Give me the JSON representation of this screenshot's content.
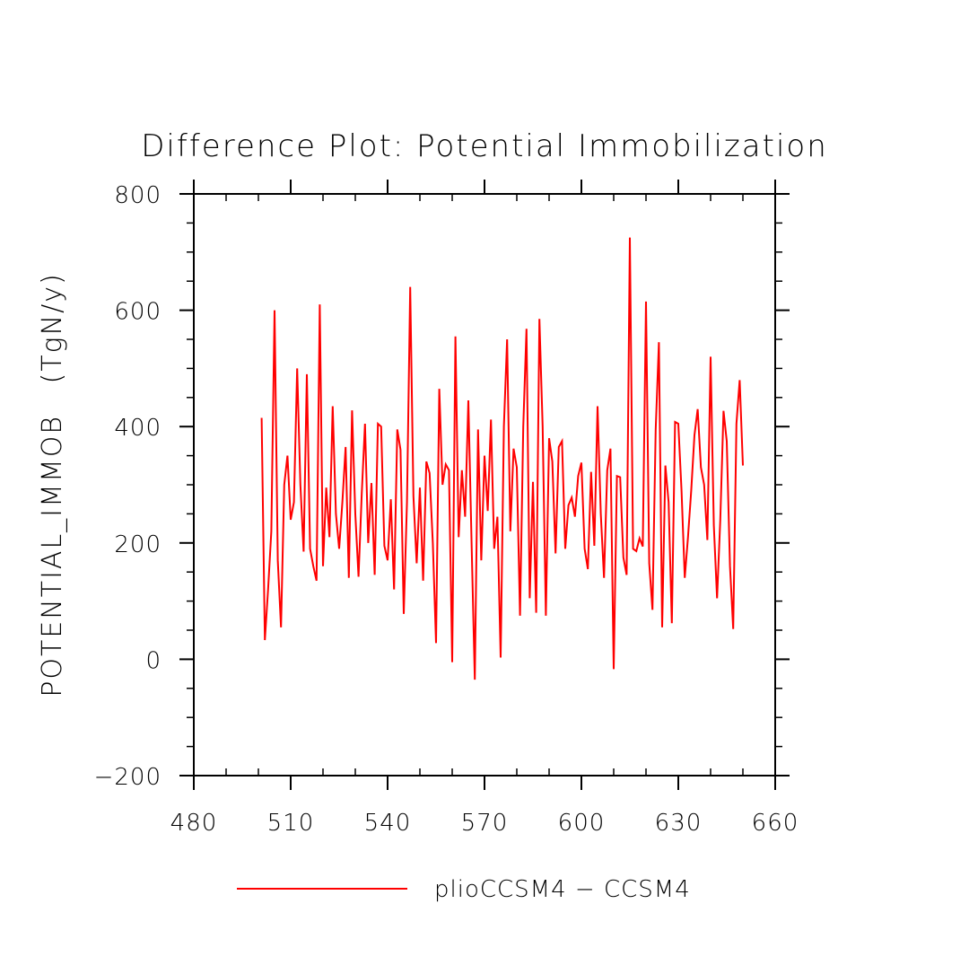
{
  "chart_data": {
    "type": "line",
    "title": "Difference Plot: Potential Immobilization",
    "xlabel": "",
    "ylabel": "POTENTIAL_IMMOB   (TgN/y)",
    "xlim": [
      480,
      660
    ],
    "ylim": [
      -200,
      800
    ],
    "xticks": [
      480,
      510,
      540,
      570,
      600,
      630,
      660
    ],
    "xtick_labels": [
      "480",
      "510",
      "540",
      "570",
      "600",
      "630",
      "660"
    ],
    "yticks": [
      -200,
      0,
      200,
      400,
      600,
      800
    ],
    "ytick_labels": [
      "−200",
      "0",
      "200",
      "400",
      "600",
      "800"
    ],
    "x_minor_step": 10,
    "y_minor_step": 50,
    "grid": false,
    "legend_position": "bottom-center",
    "series": [
      {
        "name": "plioCCSM4 − CCSM4",
        "color": "#ff0000",
        "x": [
          501,
          502,
          503,
          504,
          505,
          506,
          507,
          508,
          509,
          510,
          511,
          512,
          513,
          514,
          515,
          516,
          517,
          518,
          519,
          520,
          521,
          522,
          523,
          524,
          525,
          526,
          527,
          528,
          529,
          530,
          531,
          532,
          533,
          534,
          535,
          536,
          537,
          538,
          539,
          540,
          541,
          542,
          543,
          544,
          545,
          546,
          547,
          548,
          549,
          550,
          551,
          552,
          553,
          554,
          555,
          556,
          557,
          558,
          559,
          560,
          561,
          562,
          563,
          564,
          565,
          566,
          567,
          568,
          569,
          570,
          571,
          572,
          573,
          574,
          575,
          576,
          577,
          578,
          579,
          580,
          581,
          582,
          583,
          584,
          585,
          586,
          587,
          588,
          589,
          590,
          591,
          592,
          593,
          594,
          595,
          596,
          597,
          598,
          599,
          600,
          601,
          602,
          603,
          604,
          605,
          606,
          607,
          608,
          609,
          610,
          611,
          612,
          613,
          614,
          615,
          616,
          617,
          618,
          619,
          620,
          621,
          622,
          623,
          624,
          625,
          626,
          627,
          628,
          629,
          630,
          631,
          632,
          633,
          634,
          635,
          636,
          637,
          638,
          639,
          640,
          641,
          642,
          643,
          644,
          645,
          646,
          647,
          648,
          649,
          650
        ],
        "values": [
          415,
          33,
          120,
          220,
          600,
          170,
          55,
          300,
          350,
          240,
          270,
          500,
          300,
          185,
          490,
          190,
          160,
          135,
          610,
          160,
          295,
          210,
          435,
          250,
          190,
          270,
          365,
          140,
          428,
          250,
          142,
          285,
          405,
          200,
          303,
          145,
          405,
          400,
          195,
          170,
          275,
          120,
          395,
          360,
          78,
          270,
          640,
          280,
          165,
          295,
          135,
          340,
          320,
          200,
          28,
          465,
          300,
          335,
          325,
          -5,
          555,
          210,
          325,
          245,
          445,
          200,
          -35,
          395,
          170,
          350,
          255,
          412,
          190,
          245,
          3,
          400,
          550,
          220,
          362,
          330,
          75,
          400,
          568,
          105,
          305,
          80,
          585,
          400,
          75,
          380,
          340,
          182,
          365,
          375,
          190,
          265,
          278,
          245,
          315,
          338,
          190,
          155,
          322,
          195,
          435,
          250,
          140,
          325,
          362,
          -17,
          315,
          313,
          175,
          145,
          725,
          190,
          186,
          208,
          194,
          615,
          165,
          85,
          395,
          545,
          55,
          333,
          270,
          62,
          408,
          405,
          290,
          140,
          210,
          290,
          385,
          430,
          330,
          300,
          205,
          520,
          230,
          105,
          240,
          427,
          375,
          160,
          52,
          405,
          480,
          333
        ]
      }
    ]
  }
}
